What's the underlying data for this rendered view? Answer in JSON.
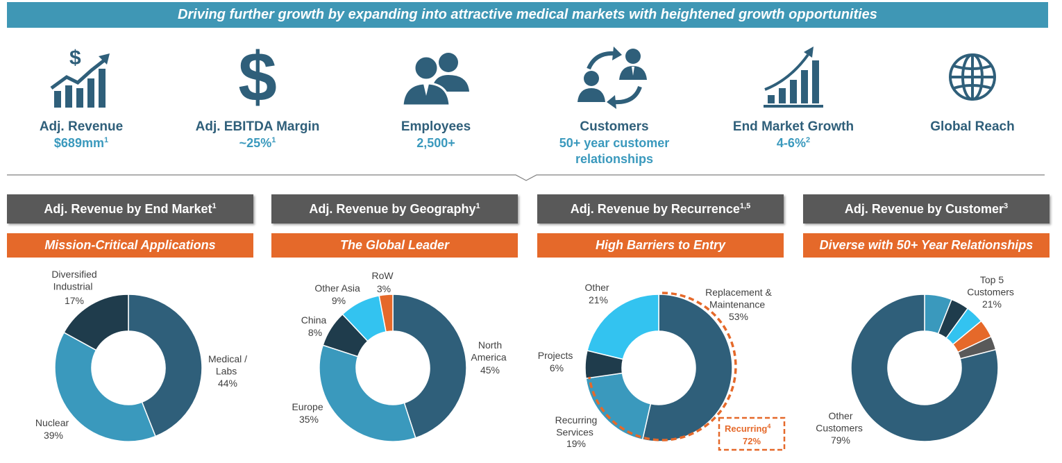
{
  "banner": "Driving further growth by expanding into attractive medical markets with heightened growth opportunities",
  "kpis": [
    {
      "icon": "revenue-chart-dollar-icon",
      "label": "Adj. Revenue",
      "value": "$689mm",
      "sup": "1"
    },
    {
      "icon": "dollar-sign-icon",
      "label": "Adj. EBITDA Margin",
      "value": "~25%",
      "sup": "1"
    },
    {
      "icon": "employees-icon",
      "label": "Employees",
      "value": "2,500+",
      "sup": ""
    },
    {
      "icon": "customers-cycle-icon",
      "label": "Customers",
      "value": "50+ year customer relationships",
      "sup": ""
    },
    {
      "icon": "growth-bars-icon",
      "label": "End Market Growth",
      "value": "4-6%",
      "sup": "2"
    },
    {
      "icon": "globe-icon",
      "label": "Global Reach",
      "value": "",
      "sup": ""
    }
  ],
  "panels": [
    {
      "title": "Adj. Revenue by End Market",
      "sup": "1",
      "subtitle": "Mission-Critical Applications"
    },
    {
      "title": "Adj. Revenue by Geography",
      "sup": "1",
      "subtitle": "The Global Leader"
    },
    {
      "title": "Adj. Revenue by Recurrence",
      "sup": "1,5",
      "subtitle": "High Barriers to Entry"
    },
    {
      "title": "Adj. Revenue by Customer",
      "sup": "3",
      "subtitle": "Diverse with 50+ Year Relationships"
    }
  ],
  "colors": {
    "dark_teal": "#2f5f7a",
    "mid_teal": "#3a99bd",
    "banner": "#3f97b5",
    "orange": "#e5692a",
    "gray_head": "#595959",
    "darkest": "#1f3c4c",
    "cyan": "#33c3f0",
    "gray": "#595959"
  },
  "chart_data": [
    {
      "type": "pie",
      "title": "Adj. Revenue by End Market",
      "slices": [
        {
          "label": "Medical / Labs",
          "value": 44,
          "display": "44%",
          "color": "#2f5f7a"
        },
        {
          "label": "Nuclear",
          "value": 39,
          "display": "39%",
          "color": "#3a99bd"
        },
        {
          "label": "Diversified Industrial",
          "value": 17,
          "display": "17%",
          "color": "#1f3c4c"
        }
      ]
    },
    {
      "type": "pie",
      "title": "Adj. Revenue by Geography",
      "slices": [
        {
          "label": "North America",
          "value": 45,
          "display": "45%",
          "color": "#2f5f7a"
        },
        {
          "label": "Europe",
          "value": 35,
          "display": "35%",
          "color": "#3a99bd"
        },
        {
          "label": "China",
          "value": 8,
          "display": "8%",
          "color": "#1f3c4c"
        },
        {
          "label": "Other Asia",
          "value": 9,
          "display": "9%",
          "color": "#33c3f0"
        },
        {
          "label": "RoW",
          "value": 3,
          "display": "3%",
          "color": "#e5692a"
        }
      ]
    },
    {
      "type": "pie",
      "title": "Adj. Revenue by Recurrence",
      "slices": [
        {
          "label": "Replacement & Maintenance",
          "value": 53,
          "display": "53%",
          "color": "#2f5f7a"
        },
        {
          "label": "Recurring Services",
          "value": 19,
          "display": "19%",
          "color": "#3a99bd"
        },
        {
          "label": "Projects",
          "value": 6,
          "display": "6%",
          "color": "#1f3c4c"
        },
        {
          "label": "Other",
          "value": 21,
          "display": "21%",
          "color": "#33c3f0"
        }
      ],
      "annotation": {
        "label": "Recurring",
        "sup": "4",
        "value": "72%"
      }
    },
    {
      "type": "pie",
      "title": "Adj. Revenue by Customer",
      "slices": [
        {
          "value": 6,
          "color": "#3a99bd"
        },
        {
          "value": 4,
          "color": "#1f3c4c"
        },
        {
          "value": 4,
          "color": "#33c3f0"
        },
        {
          "value": 4,
          "color": "#e5692a"
        },
        {
          "value": 3,
          "color": "#595959"
        },
        {
          "label": "Other Customers",
          "value": 79,
          "display": "79%",
          "color": "#2f5f7a"
        }
      ],
      "group_label": {
        "label": "Top 5 Customers",
        "value": "21%"
      }
    }
  ]
}
